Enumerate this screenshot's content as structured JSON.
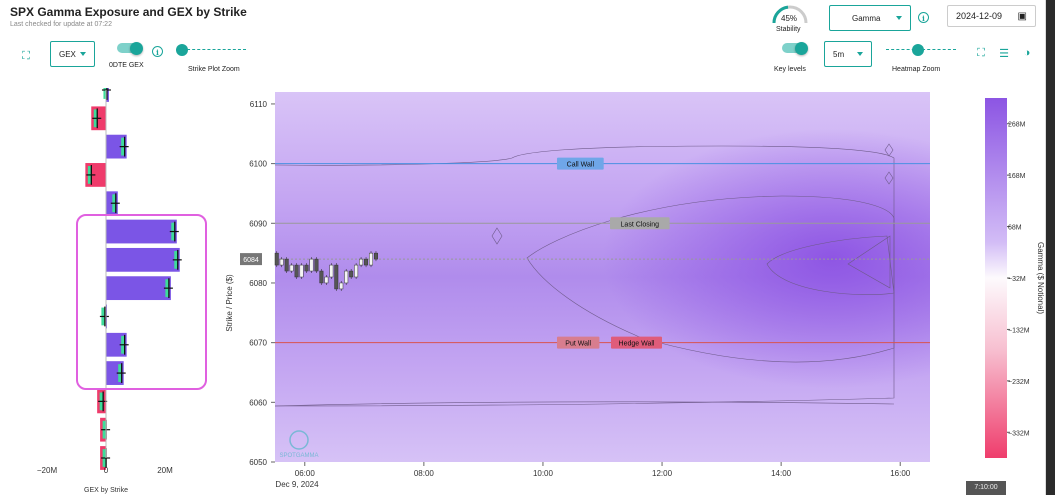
{
  "header": {
    "title": "SPX Gamma Exposure and GEX by Strike",
    "subtitle": "Last checked for update at 07:22"
  },
  "toolbar_left": {
    "mode_select": "GEX",
    "odte_label": "0DTE GEX",
    "strike_zoom_label": "Strike Plot Zoom"
  },
  "toolbar_right": {
    "stability_value": "45%",
    "stability_label": "Stability",
    "metric_select": "Gamma",
    "date_value": "2024-12-09",
    "key_levels_label": "Key levels",
    "interval_select": "5m",
    "heatmap_zoom_label": "Heatmap Zoom"
  },
  "gex_chart": {
    "x_ticks": [
      "−20M",
      "0",
      "20M"
    ],
    "x_label": "GEX by Strike"
  },
  "heatmap": {
    "y_label": "Strike / Price ($)",
    "y_ticks": [
      "6110",
      "6100",
      "6090",
      "6080",
      "6070",
      "6060",
      "6050"
    ],
    "x_ticks": [
      "06:00",
      "08:00",
      "10:00",
      "12:00",
      "14:00",
      "16:00"
    ],
    "x_date": "Dec 9, 2024",
    "price_marker": "6084",
    "levels": {
      "call_wall": "Call Wall",
      "last_closing": "Last Closing",
      "put_wall": "Put Wall",
      "hedge_wall": "Hedge Wall"
    },
    "watermark": "SPOTGAMMA"
  },
  "colorbar": {
    "label": "Gamma ($ Notional)",
    "ticks": [
      "268M",
      "168M",
      "68M",
      "−32M",
      "−132M",
      "−232M",
      "−332M"
    ]
  },
  "time_badge": "7:10:00",
  "chart_data": [
    {
      "type": "bar",
      "orientation": "horizontal",
      "xlabel": "GEX by Strike",
      "xlim": [
        -25,
        25
      ],
      "x_unit": "M",
      "strikes": [
        6115,
        6110,
        6105,
        6100,
        6095,
        6090,
        6085,
        6080,
        6075,
        6070,
        6065,
        6060,
        6055,
        6050
      ],
      "values": [
        1,
        -5,
        7,
        -7,
        4,
        24,
        25,
        22,
        0.3,
        7,
        6,
        -3,
        -2,
        -2
      ],
      "ylim": [
        6050,
        6115
      ]
    },
    {
      "type": "heatmap",
      "ylabel": "Strike / Price ($)",
      "ylim": [
        6050,
        6112
      ],
      "x_range": [
        "05:30",
        "16:30"
      ],
      "colorbar_label": "Gamma ($ Notional)",
      "colorbar_range_M": [
        -382,
        318
      ],
      "key_levels": [
        {
          "name": "Call Wall",
          "strike": 6100,
          "color": "#4a90e2"
        },
        {
          "name": "Last Closing",
          "strike": 6090,
          "color": "#999999"
        },
        {
          "name": "Put Wall",
          "strike": 6070,
          "color": "#d9534f"
        },
        {
          "name": "Hedge Wall",
          "strike": 6070,
          "color": "#d9534f"
        }
      ],
      "current_price": 6084,
      "candles": [
        {
          "t": "05:30",
          "o": 6085,
          "c": 6083
        },
        {
          "t": "05:35",
          "o": 6083,
          "c": 6084
        },
        {
          "t": "05:40",
          "o": 6084,
          "c": 6082
        },
        {
          "t": "05:45",
          "o": 6082,
          "c": 6083
        },
        {
          "t": "05:50",
          "o": 6083,
          "c": 6081
        },
        {
          "t": "05:55",
          "o": 6081,
          "c": 6083
        },
        {
          "t": "06:00",
          "o": 6083,
          "c": 6082
        },
        {
          "t": "06:05",
          "o": 6082,
          "c": 6084
        },
        {
          "t": "06:10",
          "o": 6084,
          "c": 6082
        },
        {
          "t": "06:15",
          "o": 6082,
          "c": 6080
        },
        {
          "t": "06:20",
          "o": 6080,
          "c": 6081
        },
        {
          "t": "06:25",
          "o": 6081,
          "c": 6083
        },
        {
          "t": "06:30",
          "o": 6083,
          "c": 6079
        },
        {
          "t": "06:35",
          "o": 6079,
          "c": 6080
        },
        {
          "t": "06:40",
          "o": 6080,
          "c": 6082
        },
        {
          "t": "06:45",
          "o": 6082,
          "c": 6081
        },
        {
          "t": "06:50",
          "o": 6081,
          "c": 6083
        },
        {
          "t": "06:55",
          "o": 6083,
          "c": 6084
        },
        {
          "t": "07:00",
          "o": 6084,
          "c": 6083
        },
        {
          "t": "07:05",
          "o": 6083,
          "c": 6085
        },
        {
          "t": "07:10",
          "o": 6085,
          "c": 6084
        }
      ]
    }
  ]
}
